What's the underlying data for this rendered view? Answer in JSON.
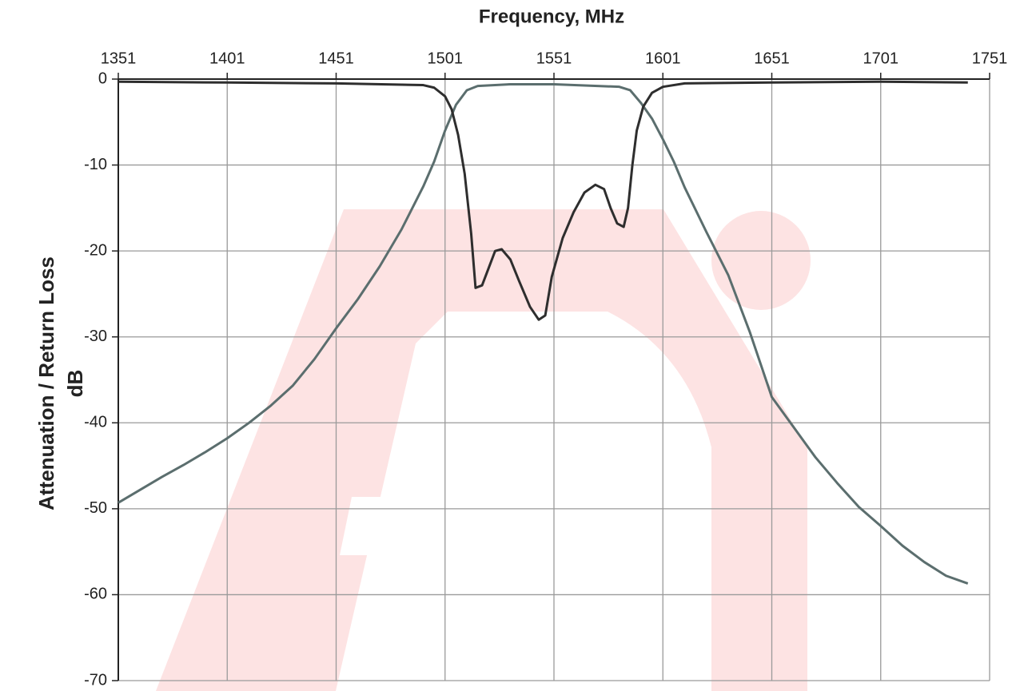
{
  "chart_data": {
    "type": "line",
    "title": "Frequency, MHz",
    "ylabel": [
      "Attenuation / Return Loss",
      "dB"
    ],
    "xlim": [
      1351,
      1751
    ],
    "xticks": [
      1351,
      1401,
      1451,
      1501,
      1551,
      1601,
      1651,
      1701,
      1751
    ],
    "ylim": [
      -70,
      0
    ],
    "yticks": [
      0,
      -10,
      -20,
      -30,
      -40,
      -50,
      -60,
      -70
    ],
    "grid": true,
    "series": [
      {
        "color": "#5b6e6e",
        "x": [
          1351,
          1361,
          1371,
          1381,
          1391,
          1401,
          1411,
          1421,
          1431,
          1441,
          1451,
          1461,
          1471,
          1481,
          1491,
          1496,
          1501,
          1506,
          1511,
          1516,
          1531,
          1551,
          1571,
          1581,
          1586,
          1591,
          1596,
          1601,
          1606,
          1611,
          1621,
          1631,
          1641,
          1651,
          1661,
          1671,
          1681,
          1691,
          1701,
          1711,
          1721,
          1731,
          1741
        ],
        "values": [
          -49.3,
          -47.8,
          -46.3,
          -44.9,
          -43.4,
          -41.8,
          -40,
          -38,
          -35.7,
          -32.6,
          -29,
          -25.6,
          -21.8,
          -17.5,
          -12.5,
          -9.6,
          -6,
          -3,
          -1.3,
          -0.8,
          -0.6,
          -0.6,
          -0.8,
          -0.9,
          -1.3,
          -2.8,
          -4.6,
          -7,
          -9.6,
          -12.6,
          -17.8,
          -22.8,
          -29.5,
          -37,
          -40.5,
          -44,
          -47,
          -49.8,
          -52,
          -54.3,
          -56.2,
          -57.8,
          -58.7
        ]
      },
      {
        "color": "#2e2e2e",
        "x": [
          1351,
          1401,
          1451,
          1491,
          1496,
          1501,
          1504,
          1507,
          1510,
          1513,
          1515,
          1518,
          1521,
          1524,
          1527,
          1531,
          1535,
          1540,
          1544,
          1547,
          1550,
          1555,
          1560,
          1565,
          1570,
          1574,
          1577,
          1580,
          1583,
          1585,
          1587,
          1589,
          1592,
          1596,
          1601,
          1611,
          1651,
          1701,
          1741
        ],
        "values": [
          -0.3,
          -0.4,
          -0.5,
          -0.7,
          -1,
          -2,
          -3.5,
          -6.5,
          -11,
          -18,
          -24.3,
          -24,
          -22,
          -20,
          -19.8,
          -21,
          -23.5,
          -26.5,
          -28,
          -27.5,
          -23,
          -18.5,
          -15.5,
          -13.2,
          -12.3,
          -12.8,
          -15,
          -16.8,
          -17.2,
          -15,
          -10,
          -6,
          -3.2,
          -1.6,
          -0.9,
          -0.5,
          -0.4,
          -0.3,
          -0.4
        ]
      }
    ]
  }
}
